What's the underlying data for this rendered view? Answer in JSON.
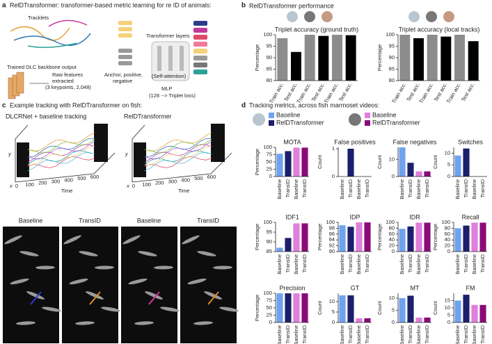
{
  "panel_a": {
    "letter": "a",
    "title": "RelDTransformer: transformer-based metric learning for re ID of animals:",
    "tracklets": "Tracklets",
    "backbone": "Trained DLC backbone output",
    "raw_features": [
      "Raw features",
      "extracted",
      "(3 keypoints, 2,048)"
    ],
    "anchor": [
      "Anchor, positive,",
      "negative"
    ],
    "transformer": "Transformer layers",
    "attention": "(Self-attention)",
    "mlp": [
      "MLP",
      "(128 --> Triplet loss)"
    ]
  },
  "panel_b": {
    "letter": "b",
    "title": "RelDTransformer performance"
  },
  "panel_c": {
    "letter": "c",
    "title": "Example tracking with RelDTransformer on fish:",
    "plots": [
      {
        "title": "DLCRNet + baseline tracking",
        "time_ticks": [
          0,
          100,
          200,
          300,
          400,
          500,
          600
        ]
      },
      {
        "title": "RelDTransformer",
        "time_ticks": [
          0,
          100,
          200,
          300,
          400,
          500,
          600
        ]
      }
    ],
    "axis_y": "y",
    "axis_x": "x",
    "axis_time": "Time",
    "image_labels": [
      "Baseline",
      "TransID",
      "Baseline",
      "TransID"
    ]
  },
  "panel_d": {
    "letter": "d",
    "title": "Tracking metrics, across fish marmoset videos:",
    "legend": [
      {
        "name": "Baseline",
        "color": "#6fa3ef"
      },
      {
        "name": "RelDTransformer",
        "color": "#1c1f6b"
      },
      {
        "name": "Baseline",
        "color": "#e07fdc"
      },
      {
        "name": "RelDTransformer",
        "color": "#8a0b78"
      }
    ]
  },
  "chart_data": [
    {
      "type": "bar",
      "title": "Triplet accuracy (ground truth)",
      "ylabel": "Percentage",
      "categories": [
        "Train acc.",
        "Test acc.",
        "Train acc.",
        "Test acc.",
        "Train acc.",
        "Test acc."
      ],
      "values": [
        98.5,
        92.5,
        100,
        99.5,
        100,
        99.8
      ],
      "colors": [
        "#8c8c8c",
        "#000000",
        "#8c8c8c",
        "#000000",
        "#8c8c8c",
        "#000000"
      ],
      "ylim": [
        80,
        100
      ],
      "yticks": [
        80,
        85,
        90,
        95,
        100
      ]
    },
    {
      "type": "bar",
      "title": "Triplet accuracy (local tracks)",
      "ylabel": "Percentage",
      "categories": [
        "Train acc.",
        "Test acc.",
        "Train acc.",
        "Test acc.",
        "Train acc.",
        "Test acc."
      ],
      "values": [
        100,
        98.5,
        100,
        99.2,
        100,
        97.2
      ],
      "colors": [
        "#8c8c8c",
        "#000000",
        "#8c8c8c",
        "#000000",
        "#8c8c8c",
        "#000000"
      ],
      "ylim": [
        80,
        100
      ],
      "yticks": [
        80,
        85,
        90,
        95,
        100
      ]
    },
    {
      "type": "bar",
      "title": "MOTA",
      "ylabel": "Percentage",
      "categories": [
        "Baseline",
        "TransID",
        "Baseline",
        "TransID"
      ],
      "values": [
        78,
        87,
        99,
        99
      ],
      "colors": [
        "#6fa3ef",
        "#1c1f6b",
        "#e07fdc",
        "#8a0b78"
      ],
      "ylim": [
        0,
        100
      ],
      "yticks": [
        0,
        25,
        50,
        75,
        100
      ]
    },
    {
      "type": "bar",
      "title": "False positives",
      "ylabel": "Count",
      "categories": [
        "Baseline",
        "TransID",
        "Baseline",
        "TransID"
      ],
      "values": [
        0,
        1,
        0,
        0
      ],
      "colors": [
        "#6fa3ef",
        "#1c1f6b",
        "#e07fdc",
        "#8a0b78"
      ],
      "ylim": [
        0,
        1.05
      ],
      "yticks": [
        0,
        1
      ]
    },
    {
      "type": "bar",
      "title": "False negatives",
      "ylabel": "Count",
      "categories": [
        "Baseline",
        "TransID",
        "Baseline",
        "TransID"
      ],
      "values": [
        17,
        8,
        3,
        3
      ],
      "colors": [
        "#6fa3ef",
        "#1c1f6b",
        "#e07fdc",
        "#8a0b78"
      ],
      "ylim": [
        0,
        17
      ],
      "yticks": [
        0,
        10
      ]
    },
    {
      "type": "bar",
      "title": "Switches",
      "ylabel": "Count",
      "categories": [
        "Baseline",
        "TransID",
        "Baseline",
        "TransID"
      ],
      "values": [
        9,
        12,
        0,
        0
      ],
      "colors": [
        "#6fa3ef",
        "#1c1f6b",
        "#e07fdc",
        "#8a0b78"
      ],
      "ylim": [
        0,
        12.5
      ],
      "yticks": [
        0,
        5,
        10
      ]
    },
    {
      "type": "bar",
      "title": "IDF1",
      "ylabel": "Percentage",
      "categories": [
        "Baseline",
        "TransID",
        "Baseline",
        "TransID"
      ],
      "values": [
        87,
        92,
        99.5,
        99.5
      ],
      "colors": [
        "#6fa3ef",
        "#1c1f6b",
        "#e07fdc",
        "#8a0b78"
      ],
      "ylim": [
        85,
        100
      ],
      "yticks": [
        85,
        90,
        95,
        100
      ]
    },
    {
      "type": "bar",
      "title": "IDP",
      "ylabel": "Percentage",
      "categories": [
        "Baseline",
        "TransID",
        "Baseline",
        "TransID"
      ],
      "values": [
        99,
        98.5,
        100,
        100
      ],
      "colors": [
        "#6fa3ef",
        "#1c1f6b",
        "#e07fdc",
        "#8a0b78"
      ],
      "ylim": [
        90,
        100
      ],
      "yticks": [
        90,
        92,
        94,
        96,
        98,
        100
      ]
    },
    {
      "type": "bar",
      "title": "IDR",
      "ylabel": "Percentage",
      "categories": [
        "Baseline",
        "TransID",
        "Baseline",
        "TransID"
      ],
      "values": [
        78,
        86,
        99,
        99
      ],
      "colors": [
        "#6fa3ef",
        "#1c1f6b",
        "#e07fdc",
        "#8a0b78"
      ],
      "ylim": [
        0,
        100
      ],
      "yticks": [
        0,
        20,
        40,
        60,
        80,
        100
      ]
    },
    {
      "type": "bar",
      "title": "Recall",
      "ylabel": "Percentage",
      "categories": [
        "Baseline",
        "TransID",
        "Baseline",
        "TransID"
      ],
      "values": [
        80,
        89,
        99,
        99
      ],
      "colors": [
        "#6fa3ef",
        "#1c1f6b",
        "#e07fdc",
        "#8a0b78"
      ],
      "ylim": [
        0,
        100
      ],
      "yticks": [
        0,
        20,
        40,
        60,
        80,
        100
      ]
    },
    {
      "type": "bar",
      "title": "Precision",
      "ylabel": "Percentage",
      "categories": [
        "Baseline",
        "TransID",
        "Baseline",
        "TransID"
      ],
      "values": [
        99.8,
        99.8,
        99.8,
        99.8
      ],
      "colors": [
        "#6fa3ef",
        "#1c1f6b",
        "#e07fdc",
        "#8a0b78"
      ],
      "ylim": [
        0,
        100
      ],
      "yticks": [
        0,
        25,
        50,
        75,
        100
      ]
    },
    {
      "type": "bar",
      "title": "GT",
      "ylabel": "Count",
      "categories": [
        "Baseline",
        "TransID",
        "Baseline",
        "TransID"
      ],
      "values": [
        13,
        13,
        2,
        2
      ],
      "colors": [
        "#6fa3ef",
        "#1c1f6b",
        "#e07fdc",
        "#8a0b78"
      ],
      "ylim": [
        0,
        14
      ],
      "yticks": [
        0,
        5,
        10
      ]
    },
    {
      "type": "bar",
      "title": "MT",
      "ylabel": "Count",
      "categories": [
        "Baseline",
        "TransID",
        "Baseline",
        "TransID"
      ],
      "values": [
        10,
        11,
        2,
        2
      ],
      "colors": [
        "#6fa3ef",
        "#1c1f6b",
        "#e07fdc",
        "#8a0b78"
      ],
      "ylim": [
        0,
        12
      ],
      "yticks": [
        0,
        5,
        10
      ]
    },
    {
      "type": "bar",
      "title": "FM",
      "ylabel": "Count",
      "categories": [
        "Baseline",
        "TransID",
        "Baseline",
        "TransID"
      ],
      "values": [
        15,
        19,
        12,
        12
      ],
      "colors": [
        "#6fa3ef",
        "#1c1f6b",
        "#e07fdc",
        "#8a0b78"
      ],
      "ylim": [
        0,
        20
      ],
      "yticks": [
        0,
        5,
        10,
        15
      ]
    }
  ]
}
